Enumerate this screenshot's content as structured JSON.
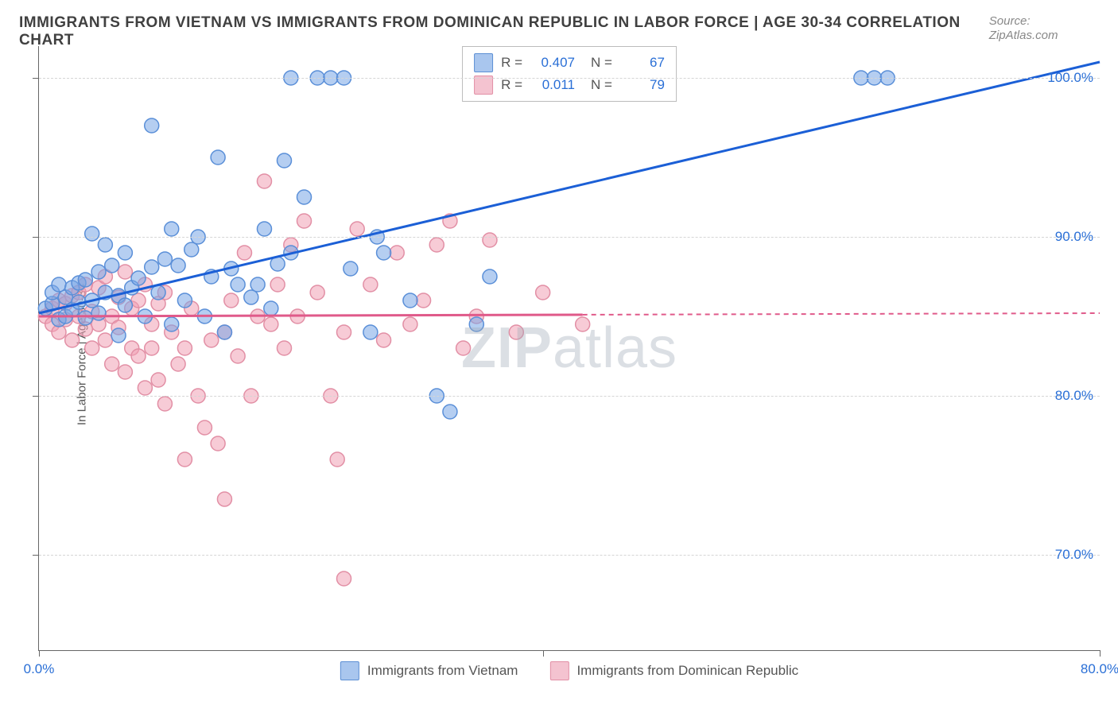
{
  "title": "IMMIGRANTS FROM VIETNAM VS IMMIGRANTS FROM DOMINICAN REPUBLIC IN LABOR FORCE | AGE 30-34 CORRELATION CHART",
  "source_label": "Source: ",
  "source_value": "ZipAtlas.com",
  "y_axis_label": "In Labor Force | Age 30-34",
  "watermark_bold": "ZIP",
  "watermark_light": "atlas",
  "chart": {
    "type": "scatter",
    "xlim": [
      0,
      80
    ],
    "ylim": [
      64,
      102
    ],
    "x_ticks": [
      0,
      80
    ],
    "x_tick_labels": [
      "0.0%",
      "80.0%"
    ],
    "y_ticks": [
      70,
      80,
      90,
      100
    ],
    "y_tick_labels": [
      "70.0%",
      "80.0%",
      "90.0%",
      "100.0%"
    ],
    "x_minor_tick": 38,
    "background_color": "#ffffff",
    "grid_color": "#d5d5d5",
    "series": [
      {
        "name": "Immigrants from Vietnam",
        "legend_label": "Immigrants from Vietnam",
        "R_label": "R =",
        "R": "0.407",
        "N_label": "N =",
        "N": "67",
        "marker_fill": "rgba(120,165,230,0.55)",
        "marker_stroke": "#5a8fd8",
        "line_color": "#1b5fd6",
        "swatch_fill": "#a9c6ee",
        "swatch_border": "#5c8fd4",
        "trend": {
          "x1": 0,
          "y1": 85.2,
          "x2": 80,
          "y2": 101,
          "solid_until": 80
        },
        "points": [
          [
            0.5,
            85.5
          ],
          [
            1,
            85.8
          ],
          [
            1,
            86.5
          ],
          [
            1.5,
            84.8
          ],
          [
            1.5,
            87.0
          ],
          [
            2,
            85.0
          ],
          [
            2,
            86.2
          ],
          [
            2.5,
            86.8
          ],
          [
            2.5,
            85.4
          ],
          [
            3,
            87.1
          ],
          [
            3,
            85.9
          ],
          [
            3.5,
            87.3
          ],
          [
            3.5,
            84.9
          ],
          [
            4,
            90.2
          ],
          [
            4,
            86.0
          ],
          [
            4.5,
            87.8
          ],
          [
            4.5,
            85.2
          ],
          [
            5,
            86.5
          ],
          [
            5,
            89.5
          ],
          [
            5.5,
            88.2
          ],
          [
            6,
            86.3
          ],
          [
            6,
            83.8
          ],
          [
            6.5,
            89.0
          ],
          [
            6.5,
            85.7
          ],
          [
            7,
            86.8
          ],
          [
            7.5,
            87.4
          ],
          [
            8,
            85.0
          ],
          [
            8.5,
            88.1
          ],
          [
            8.5,
            97.0
          ],
          [
            9,
            86.5
          ],
          [
            9.5,
            88.6
          ],
          [
            10,
            90.5
          ],
          [
            10,
            84.5
          ],
          [
            10.5,
            88.2
          ],
          [
            11,
            86.0
          ],
          [
            11.5,
            89.2
          ],
          [
            12,
            90.0
          ],
          [
            12.5,
            85.0
          ],
          [
            13,
            87.5
          ],
          [
            13.5,
            95.0
          ],
          [
            14,
            84.0
          ],
          [
            14.5,
            88.0
          ],
          [
            15,
            87.0
          ],
          [
            16,
            86.2
          ],
          [
            16.5,
            87.0
          ],
          [
            17,
            90.5
          ],
          [
            17.5,
            85.5
          ],
          [
            18,
            88.3
          ],
          [
            18.5,
            94.8
          ],
          [
            19,
            100.0
          ],
          [
            19,
            89.0
          ],
          [
            20,
            92.5
          ],
          [
            21,
            100.0
          ],
          [
            22,
            100.0
          ],
          [
            23,
            100.0
          ],
          [
            23.5,
            88.0
          ],
          [
            25,
            84.0
          ],
          [
            25.5,
            90.0
          ],
          [
            26,
            89.0
          ],
          [
            28,
            86.0
          ],
          [
            30,
            80.0
          ],
          [
            31,
            79.0
          ],
          [
            33,
            84.5
          ],
          [
            34,
            87.5
          ],
          [
            62,
            100.0
          ],
          [
            63,
            100.0
          ],
          [
            64,
            100.0
          ]
        ]
      },
      {
        "name": "Immigrants from Dominican Republic",
        "legend_label": "Immigrants from Dominican Republic",
        "R_label": "R =",
        "R": "0.011",
        "N_label": "N =",
        "N": "79",
        "marker_fill": "rgba(240,160,180,0.55)",
        "marker_stroke": "#e28fa5",
        "line_color": "#e05a8a",
        "swatch_fill": "#f4c3d0",
        "swatch_border": "#e28fa5",
        "trend": {
          "x1": 0,
          "y1": 85.0,
          "x2": 80,
          "y2": 85.2,
          "solid_until": 41
        },
        "points": [
          [
            0.5,
            85.0
          ],
          [
            1,
            85.5
          ],
          [
            1,
            84.5
          ],
          [
            1.5,
            86.0
          ],
          [
            1.5,
            84.0
          ],
          [
            2,
            85.8
          ],
          [
            2,
            84.8
          ],
          [
            2.5,
            86.3
          ],
          [
            2.5,
            83.5
          ],
          [
            3,
            85.0
          ],
          [
            3,
            86.5
          ],
          [
            3.5,
            84.2
          ],
          [
            3.5,
            87.0
          ],
          [
            4,
            85.3
          ],
          [
            4,
            83.0
          ],
          [
            4.5,
            86.8
          ],
          [
            4.5,
            84.5
          ],
          [
            5,
            87.5
          ],
          [
            5,
            83.5
          ],
          [
            5.5,
            85.0
          ],
          [
            5.5,
            82.0
          ],
          [
            6,
            86.2
          ],
          [
            6,
            84.3
          ],
          [
            6.5,
            87.8
          ],
          [
            6.5,
            81.5
          ],
          [
            7,
            85.5
          ],
          [
            7,
            83.0
          ],
          [
            7.5,
            86.0
          ],
          [
            7.5,
            82.5
          ],
          [
            8,
            87.0
          ],
          [
            8,
            80.5
          ],
          [
            8.5,
            84.5
          ],
          [
            8.5,
            83.0
          ],
          [
            9,
            85.8
          ],
          [
            9,
            81.0
          ],
          [
            9.5,
            86.5
          ],
          [
            9.5,
            79.5
          ],
          [
            10,
            84.0
          ],
          [
            10.5,
            82.0
          ],
          [
            11,
            83.0
          ],
          [
            11,
            76.0
          ],
          [
            11.5,
            85.5
          ],
          [
            12,
            80.0
          ],
          [
            12.5,
            78.0
          ],
          [
            13,
            83.5
          ],
          [
            13.5,
            77.0
          ],
          [
            14,
            84.0
          ],
          [
            14,
            73.5
          ],
          [
            14.5,
            86.0
          ],
          [
            15,
            82.5
          ],
          [
            15.5,
            89.0
          ],
          [
            16,
            80.0
          ],
          [
            16.5,
            85.0
          ],
          [
            17,
            93.5
          ],
          [
            17.5,
            84.5
          ],
          [
            18,
            87.0
          ],
          [
            18.5,
            83.0
          ],
          [
            19,
            89.5
          ],
          [
            19.5,
            85.0
          ],
          [
            20,
            91.0
          ],
          [
            21,
            86.5
          ],
          [
            22,
            80.0
          ],
          [
            22.5,
            76.0
          ],
          [
            23,
            84.0
          ],
          [
            23,
            68.5
          ],
          [
            24,
            90.5
          ],
          [
            25,
            87.0
          ],
          [
            26,
            83.5
          ],
          [
            27,
            89.0
          ],
          [
            28,
            84.5
          ],
          [
            29,
            86.0
          ],
          [
            30,
            89.5
          ],
          [
            31,
            91.0
          ],
          [
            32,
            83.0
          ],
          [
            33,
            85.0
          ],
          [
            34,
            89.8
          ],
          [
            36,
            84.0
          ],
          [
            38,
            86.5
          ],
          [
            41,
            84.5
          ]
        ]
      }
    ]
  }
}
